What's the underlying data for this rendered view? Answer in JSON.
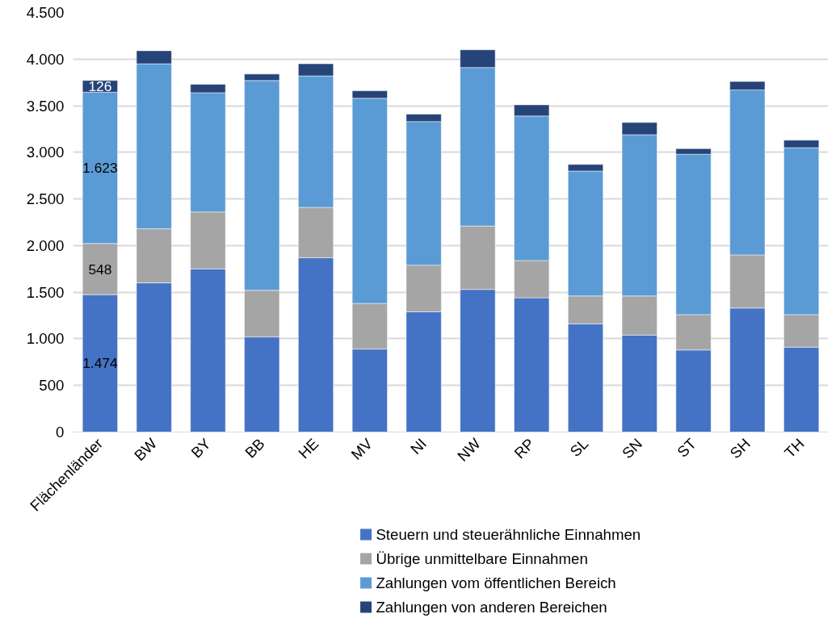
{
  "chart_data": {
    "type": "bar",
    "stacked": true,
    "categories": [
      "Flächenländer",
      "BW",
      "BY",
      "BB",
      "HE",
      "MV",
      "NI",
      "NW",
      "RP",
      "SL",
      "SN",
      "ST",
      "SH",
      "TH"
    ],
    "series": [
      {
        "name": "Steuern und steuerähnliche Einnahmen",
        "color": "#4472c4",
        "values": [
          1474,
          1600,
          1750,
          1020,
          1870,
          890,
          1290,
          1530,
          1440,
          1160,
          1040,
          880,
          1330,
          910
        ],
        "value_labels": [
          "1.474",
          null,
          null,
          null,
          null,
          null,
          null,
          null,
          null,
          null,
          null,
          null,
          null,
          null
        ]
      },
      {
        "name": "Übrige unmittelbare Einnahmen",
        "color": "#a5a5a5",
        "values": [
          548,
          580,
          610,
          500,
          540,
          490,
          500,
          680,
          400,
          300,
          420,
          380,
          570,
          350
        ],
        "value_labels": [
          "548",
          null,
          null,
          null,
          null,
          null,
          null,
          null,
          null,
          null,
          null,
          null,
          null,
          null
        ]
      },
      {
        "name": "Zahlungen vom öffentlichen Bereich",
        "color": "#5b9bd5",
        "values": [
          1623,
          1770,
          1280,
          2250,
          1410,
          2200,
          1540,
          1700,
          1550,
          1340,
          1730,
          1720,
          1770,
          1790
        ],
        "value_labels": [
          "1.623",
          null,
          null,
          null,
          null,
          null,
          null,
          null,
          null,
          null,
          null,
          null,
          null,
          null
        ]
      },
      {
        "name": "Zahlungen von anderen Bereichen",
        "color": "#264478",
        "values": [
          126,
          140,
          90,
          70,
          130,
          80,
          80,
          190,
          120,
          70,
          130,
          60,
          90,
          80
        ],
        "value_labels": [
          "126",
          null,
          null,
          null,
          null,
          null,
          null,
          null,
          null,
          null,
          null,
          null,
          null,
          null
        ]
      }
    ],
    "ylim": [
      0,
      4500
    ],
    "yticks": [
      {
        "value": 0,
        "label": "0"
      },
      {
        "value": 500,
        "label": "500"
      },
      {
        "value": 1000,
        "label": "1.000"
      },
      {
        "value": 1500,
        "label": "1.500"
      },
      {
        "value": 2000,
        "label": "2.000"
      },
      {
        "value": 2500,
        "label": "2.500"
      },
      {
        "value": 3000,
        "label": "3.000"
      },
      {
        "value": 3500,
        "label": "3.500"
      },
      {
        "value": 4000,
        "label": "4.000"
      },
      {
        "value": 4500,
        "label": "4.500"
      }
    ],
    "grid": "y",
    "legend": "bottom"
  }
}
